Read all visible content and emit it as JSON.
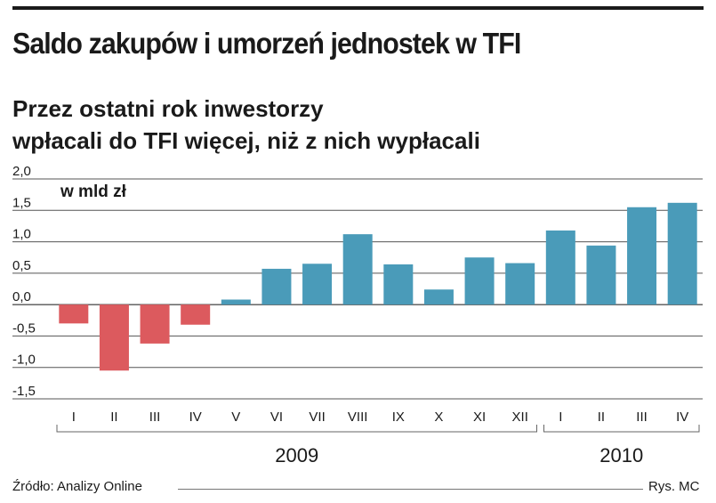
{
  "header": {
    "title": "Saldo zakupów i umorzeń jednostek w TFI",
    "subtitle_line1": "Przez ostatni rok inwestorzy",
    "subtitle_line2": "wpłacali do TFI więcej, niż z nich wypłacali"
  },
  "chart_data": {
    "type": "bar",
    "unit_label": "w mld zł",
    "categories": [
      "I",
      "II",
      "III",
      "IV",
      "V",
      "VI",
      "VII",
      "VIII",
      "IX",
      "X",
      "XI",
      "XII",
      "I",
      "II",
      "III",
      "IV"
    ],
    "values": [
      -0.3,
      -1.05,
      -0.62,
      -0.32,
      0.08,
      0.57,
      0.65,
      1.12,
      0.64,
      0.24,
      0.75,
      0.66,
      1.18,
      0.94,
      1.55,
      1.62
    ],
    "ylim": [
      -1.5,
      2.0
    ],
    "yticks": [
      2.0,
      1.5,
      1.0,
      0.5,
      0.0,
      -0.5,
      -1.0,
      -1.5
    ],
    "ytick_labels": [
      "2,0",
      "1,5",
      "1,0",
      "0,5",
      "0,0",
      "-0,5",
      "-1,0",
      "-1,5"
    ],
    "groups": [
      {
        "label": "2009",
        "count": 12
      },
      {
        "label": "2010",
        "count": 4
      }
    ],
    "colors": {
      "positive": "#4a9bb9",
      "negative": "#dc5a5e",
      "grid": "#555555"
    },
    "grid": true
  },
  "footer": {
    "source": "Źródło: Analizy Online",
    "credit": "Rys. MC"
  }
}
